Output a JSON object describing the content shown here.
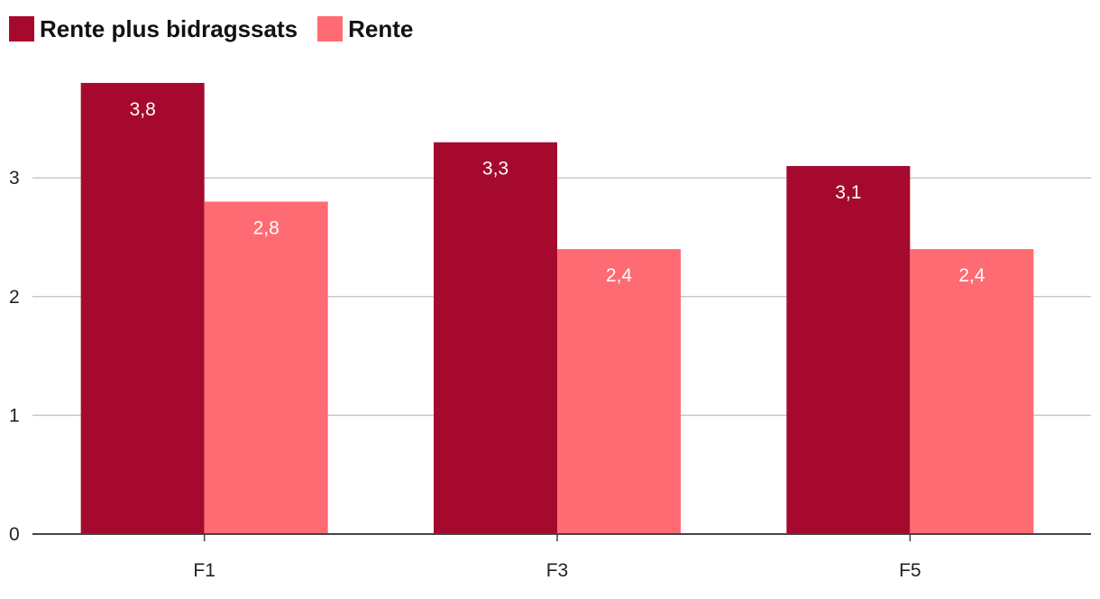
{
  "colors": {
    "series_1": "#a50a2e",
    "series_2": "#ff6b73",
    "grid": "#c8c8c8",
    "axis": "#444444"
  },
  "chart_data": {
    "type": "bar",
    "categories": [
      "F1",
      "F3",
      "F5"
    ],
    "series": [
      {
        "name": "Rente plus bidragssats",
        "values": [
          3.8,
          3.3,
          3.1
        ],
        "labels": [
          "3,8",
          "3,3",
          "3,1"
        ]
      },
      {
        "name": "Rente",
        "values": [
          2.8,
          2.4,
          2.4
        ],
        "labels": [
          "2,8",
          "2,4",
          "2,4"
        ]
      }
    ],
    "y_ticks": [
      0,
      1,
      2,
      3
    ],
    "ylim": [
      0,
      4
    ],
    "grid": true,
    "legend_position": "top-left"
  }
}
